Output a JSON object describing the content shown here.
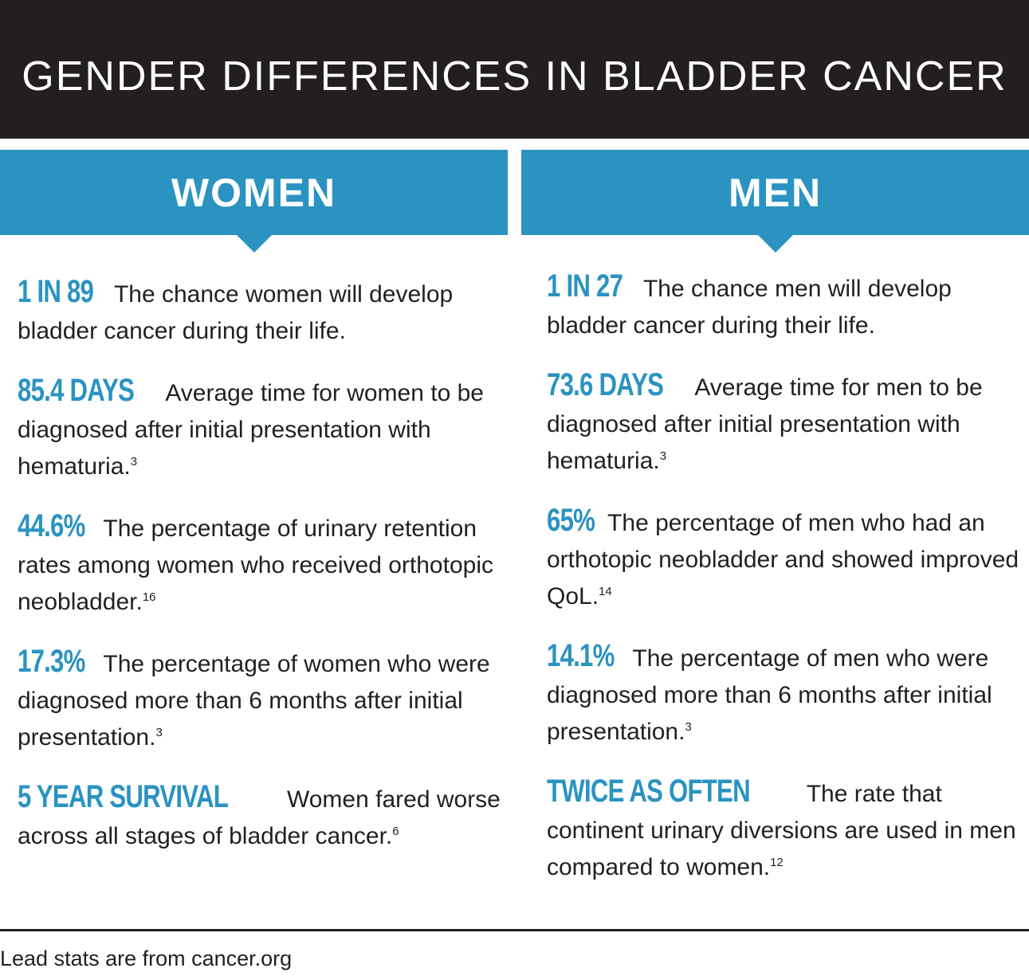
{
  "title": "GENDER DIFFERENCES IN BLADDER CANCER",
  "women": {
    "heading": "WOMEN",
    "stats": [
      {
        "lead": "1 IN 89",
        "text": " The chance women will develop bladder cancer during their life.",
        "ref": ""
      },
      {
        "lead": "85.4 DAYS",
        "text": " Average time for women to be diagnosed after initial presentation with hematuria.",
        "ref": "3"
      },
      {
        "lead": "44.6%",
        "text": "  The percentage of urinary retention rates among women who received orthotopic neobladder.",
        "ref": "16"
      },
      {
        "lead": "17.3%",
        "text": "  The percentage of women who were diagnosed more than 6 months after initial presentation.",
        "ref": "3"
      },
      {
        "lead": "5 YEAR SURVIVAL",
        "text": " Women fared worse across all stages of bladder cancer.",
        "ref": "6"
      }
    ]
  },
  "men": {
    "heading": "MEN",
    "stats": [
      {
        "lead": "1 IN 27",
        "text": " The chance men will develop bladder cancer during their life.",
        "ref": ""
      },
      {
        "lead": "73.6 DAYS",
        "text": " Average time for men to be diagnosed after initial presentation with hematuria.",
        "ref": "3"
      },
      {
        "lead": "65%",
        "text": " The percentage of men who had an orthotopic neobladder and showed improved QoL.",
        "ref": "14"
      },
      {
        "lead": "14.1%",
        "text": "  The percentage of men who were diagnosed more than 6 months after initial presentation.",
        "ref": "3"
      },
      {
        "lead": "TWICE AS OFTEN",
        "text": " The rate that continent urinary diversions are used in men compared to women.",
        "ref": "12"
      }
    ]
  },
  "footer": "Lead stats are from cancer.org",
  "colors": {
    "accent": "#2a93c1",
    "dark": "#231f20"
  }
}
